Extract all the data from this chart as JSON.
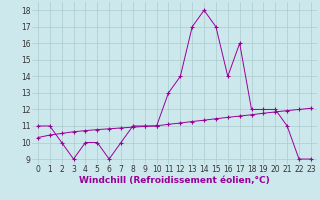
{
  "x": [
    0,
    1,
    2,
    3,
    4,
    5,
    6,
    7,
    8,
    9,
    10,
    11,
    12,
    13,
    14,
    15,
    16,
    17,
    18,
    19,
    20,
    21,
    22,
    23
  ],
  "y_main": [
    11,
    11,
    10,
    9,
    10,
    10,
    9,
    10,
    11,
    11,
    11,
    13,
    14,
    17,
    18,
    17,
    14,
    16,
    12,
    12,
    12,
    11,
    9,
    9
  ],
  "y_trend": [
    10.3,
    10.45,
    10.55,
    10.65,
    10.72,
    10.78,
    10.83,
    10.88,
    10.93,
    10.97,
    11.01,
    11.1,
    11.18,
    11.27,
    11.35,
    11.44,
    11.52,
    11.6,
    11.68,
    11.77,
    11.85,
    11.93,
    12.0,
    12.07
  ],
  "xlim": [
    -0.5,
    23.5
  ],
  "ylim": [
    8.7,
    18.5
  ],
  "yticks": [
    9,
    10,
    11,
    12,
    13,
    14,
    15,
    16,
    17,
    18
  ],
  "xticks": [
    0,
    1,
    2,
    3,
    4,
    5,
    6,
    7,
    8,
    9,
    10,
    11,
    12,
    13,
    14,
    15,
    16,
    17,
    18,
    19,
    20,
    21,
    22,
    23
  ],
  "xlabel": "Windchill (Refroidissement éolien,°C)",
  "line_color": "#990099",
  "bg_color": "#cce8ec",
  "grid_color": "#aacccc",
  "tick_fontsize": 5.5,
  "xlabel_fontsize": 6.5
}
